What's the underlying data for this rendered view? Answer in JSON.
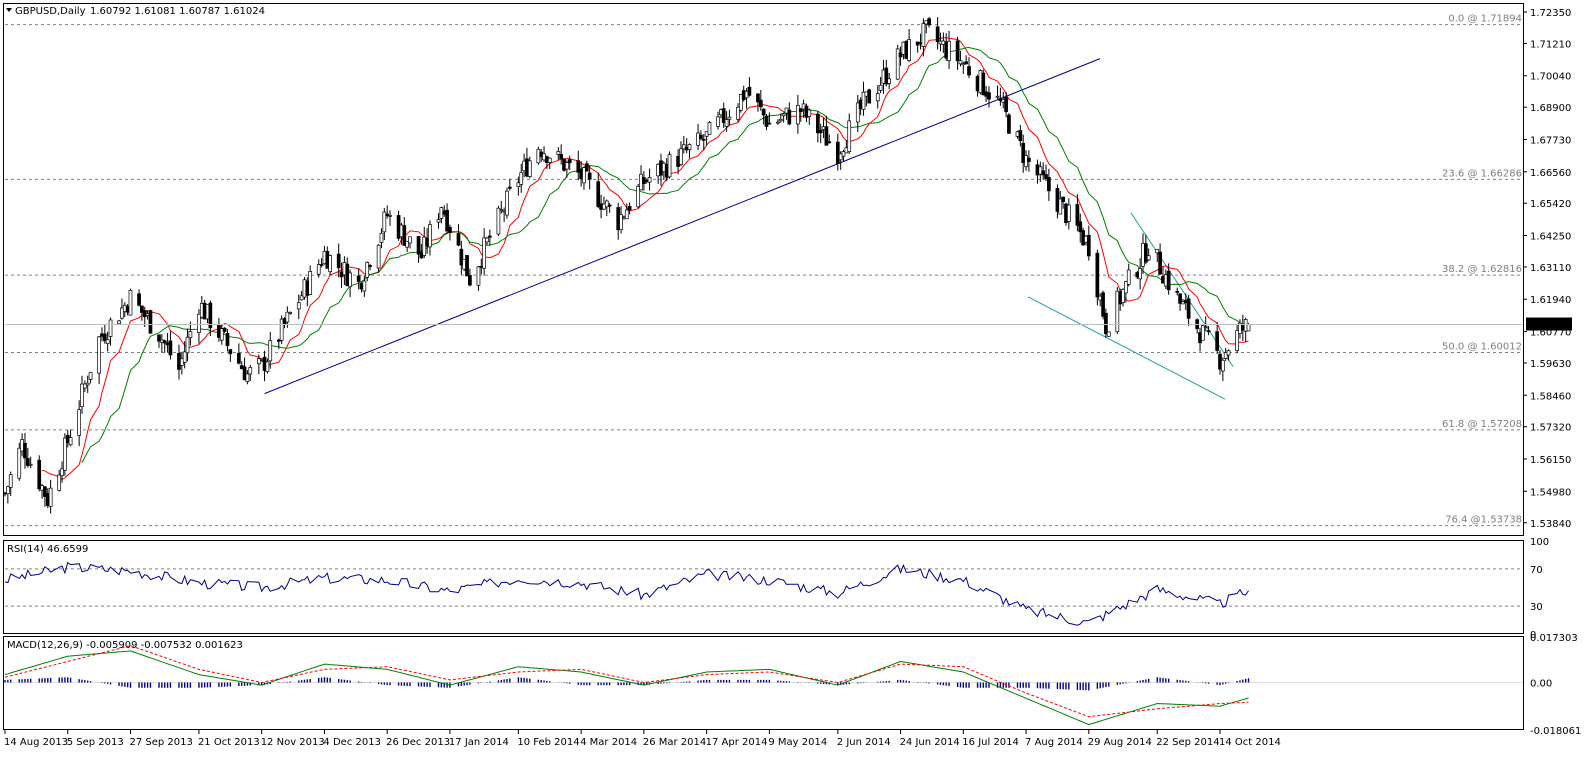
{
  "symbol_header": "GBPUSD,Daily",
  "ohlc_header": "1.60792 1.61081 1.60787 1.61024",
  "last_price": "1.61024",
  "fib_levels": [
    {
      "label": "0.0 @ 1.71894",
      "value": 1.71894
    },
    {
      "label": "23.6 @ 1.66286",
      "value": 1.66286
    },
    {
      "label": "38.2 @ 1.62816",
      "value": 1.62816
    },
    {
      "label": "50.0 @ 1.60012",
      "value": 1.60012
    },
    {
      "label": "61.8 @ 1.57208",
      "value": 1.57208
    },
    {
      "label": "76.4 @1.53738",
      "value": 1.53738
    }
  ],
  "price_axis_labels": [
    "1.72350",
    "1.71210",
    "1.70040",
    "1.68900",
    "1.67730",
    "1.66560",
    "1.65420",
    "1.64250",
    "1.63110",
    "1.61940",
    "1.60770",
    "1.59630",
    "1.58460",
    "1.57320",
    "1.56150",
    "1.54980",
    "1.53840"
  ],
  "rsi_header": "RSI(14) 46.6599",
  "rsi_axis_labels": [
    "100",
    "70",
    "30",
    "0"
  ],
  "macd_header": "MACD(12,26,9) -0.005909 -0.007532 0.001623",
  "macd_axis_labels": [
    "0.017303",
    "0.00",
    "-0.018061"
  ],
  "date_labels": [
    "14 Aug 2013",
    "5 Sep 2013",
    "27 Sep 2013",
    "21 Oct 2013",
    "12 Nov 2013",
    "4 Dec 2013",
    "26 Dec 2013",
    "17 Jan 2014",
    "10 Feb 2014",
    "4 Mar 2014",
    "26 Mar 2014",
    "17 Apr 2014",
    "9 May 2014",
    "2 Jun 2014",
    "24 Jun 2014",
    "16 Jul 2014",
    "7 Aug 2014",
    "29 Aug 2014",
    "22 Sep 2014",
    "14 Oct 2014"
  ],
  "colors": {
    "candle_bull": "#ffffff",
    "candle_bear": "#000000",
    "ma_fast": "#ff0000",
    "ma_slow": "#008000",
    "trendline": "#00008b",
    "channel": "#20a0a0",
    "rsi_line": "#00008b",
    "macd_hist": "#00008b",
    "macd_main": "#008000",
    "macd_signal": "#ff0000",
    "fib_line": "#808080"
  },
  "chart_data": {
    "type": "candlestick",
    "title": "GBPUSD,Daily",
    "ylim": [
      1.5336,
      1.7264
    ],
    "anchors": [
      {
        "date": "14 Aug 2013",
        "close": 1.549
      },
      {
        "date": "20 Aug 2013",
        "close": 1.567
      },
      {
        "date": "29 Aug 2013",
        "close": 1.547
      },
      {
        "date": "5 Sep 2013",
        "close": 1.568
      },
      {
        "date": "16 Sep 2013",
        "close": 1.605
      },
      {
        "date": "27 Sep 2013",
        "close": 1.62
      },
      {
        "date": "7 Oct 2013",
        "close": 1.607
      },
      {
        "date": "14 Oct 2013",
        "close": 1.594
      },
      {
        "date": "21 Oct 2013",
        "close": 1.618
      },
      {
        "date": "7 Nov 2013",
        "close": 1.592
      },
      {
        "date": "12 Nov 2013",
        "close": 1.595
      },
      {
        "date": "4 Dec 2013",
        "close": 1.636
      },
      {
        "date": "16 Dec 2013",
        "close": 1.625
      },
      {
        "date": "26 Dec 2013",
        "close": 1.65
      },
      {
        "date": "7 Jan 2014",
        "close": 1.635
      },
      {
        "date": "14 Jan 2014",
        "close": 1.654
      },
      {
        "date": "24 Jan 2014",
        "close": 1.627
      },
      {
        "date": "10 Feb 2014",
        "close": 1.663
      },
      {
        "date": "17 Feb 2014",
        "close": 1.675
      },
      {
        "date": "4 Mar 2014",
        "close": 1.664
      },
      {
        "date": "17 Mar 2014",
        "close": 1.648
      },
      {
        "date": "26 Mar 2014",
        "close": 1.662
      },
      {
        "date": "17 Apr 2014",
        "close": 1.678
      },
      {
        "date": "1 May 2014",
        "close": 1.695
      },
      {
        "date": "9 May 2014",
        "close": 1.683
      },
      {
        "date": "20 May 2014",
        "close": 1.688
      },
      {
        "date": "2 Jun 2014",
        "close": 1.673
      },
      {
        "date": "11 Jun 2014",
        "close": 1.69
      },
      {
        "date": "24 Jun 2014",
        "close": 1.708
      },
      {
        "date": "3 Jul 2014",
        "close": 1.716
      },
      {
        "date": "16 Jul 2014",
        "close": 1.705
      },
      {
        "date": "29 Jul 2014",
        "close": 1.69
      },
      {
        "date": "7 Aug 2014",
        "close": 1.67
      },
      {
        "date": "18 Aug 2014",
        "close": 1.655
      },
      {
        "date": "29 Aug 2014",
        "close": 1.639
      },
      {
        "date": "4 Sep 2014",
        "close": 1.61
      },
      {
        "date": "10 Sep 2014",
        "close": 1.622
      },
      {
        "date": "19 Sep 2014",
        "close": 1.639
      },
      {
        "date": "30 Sep 2014",
        "close": 1.618
      },
      {
        "date": "14 Oct 2014",
        "close": 1.598
      },
      {
        "date": "21 Oct 2014",
        "close": 1.608
      },
      {
        "date": "24 Oct 2014",
        "close": 1.61
      }
    ],
    "rsi_anchors": [
      {
        "date": "14 Aug 2013",
        "value": 58
      },
      {
        "date": "5 Sep 2013",
        "value": 72
      },
      {
        "date": "27 Sep 2013",
        "value": 68
      },
      {
        "date": "21 Oct 2013",
        "value": 55
      },
      {
        "date": "12 Nov 2013",
        "value": 50
      },
      {
        "date": "4 Dec 2013",
        "value": 60
      },
      {
        "date": "26 Dec 2013",
        "value": 58
      },
      {
        "date": "17 Jan 2014",
        "value": 46
      },
      {
        "date": "10 Feb 2014",
        "value": 60
      },
      {
        "date": "4 Mar 2014",
        "value": 55
      },
      {
        "date": "26 Mar 2014",
        "value": 42
      },
      {
        "date": "17 Apr 2014",
        "value": 64
      },
      {
        "date": "9 May 2014",
        "value": 58
      },
      {
        "date": "2 Jun 2014",
        "value": 44
      },
      {
        "date": "24 Jun 2014",
        "value": 70
      },
      {
        "date": "16 Jul 2014",
        "value": 58
      },
      {
        "date": "7 Aug 2014",
        "value": 26
      },
      {
        "date": "29 Aug 2014",
        "value": 12
      },
      {
        "date": "22 Sep 2014",
        "value": 48
      },
      {
        "date": "14 Oct 2014",
        "value": 32
      },
      {
        "date": "24 Oct 2014",
        "value": 46.6599
      }
    ],
    "macd_anchors": [
      {
        "date": "14 Aug 2013",
        "main": 0.003,
        "signal": 0.002
      },
      {
        "date": "5 Sep 2013",
        "main": 0.01,
        "signal": 0.008
      },
      {
        "date": "27 Sep 2013",
        "main": 0.012,
        "signal": 0.014
      },
      {
        "date": "21 Oct 2013",
        "main": 0.003,
        "signal": 0.005
      },
      {
        "date": "12 Nov 2013",
        "main": -0.001,
        "signal": 0.0
      },
      {
        "date": "4 Dec 2013",
        "main": 0.007,
        "signal": 0.005
      },
      {
        "date": "26 Dec 2013",
        "main": 0.005,
        "signal": 0.006
      },
      {
        "date": "17 Jan 2014",
        "main": -0.001,
        "signal": 0.001
      },
      {
        "date": "10 Feb 2014",
        "main": 0.006,
        "signal": 0.004
      },
      {
        "date": "4 Mar 2014",
        "main": 0.004,
        "signal": 0.005
      },
      {
        "date": "26 Mar 2014",
        "main": -0.001,
        "signal": 0.0
      },
      {
        "date": "17 Apr 2014",
        "main": 0.004,
        "signal": 0.003
      },
      {
        "date": "9 May 2014",
        "main": 0.005,
        "signal": 0.004
      },
      {
        "date": "2 Jun 2014",
        "main": -0.001,
        "signal": 0.0
      },
      {
        "date": "24 Jun 2014",
        "main": 0.008,
        "signal": 0.007
      },
      {
        "date": "16 Jul 2014",
        "main": 0.004,
        "signal": 0.006
      },
      {
        "date": "7 Aug 2014",
        "main": -0.006,
        "signal": -0.004
      },
      {
        "date": "29 Aug 2014",
        "main": -0.016,
        "signal": -0.013
      },
      {
        "date": "22 Sep 2014",
        "main": -0.008,
        "signal": -0.01
      },
      {
        "date": "14 Oct 2014",
        "main": -0.009,
        "signal": -0.008
      },
      {
        "date": "24 Oct 2014",
        "main": -0.005909,
        "signal": -0.007532
      }
    ],
    "rsi_ylim": [
      0,
      100
    ],
    "rsi_levels": [
      70,
      30
    ],
    "macd_ylim": [
      -0.018061,
      0.017303
    ]
  }
}
